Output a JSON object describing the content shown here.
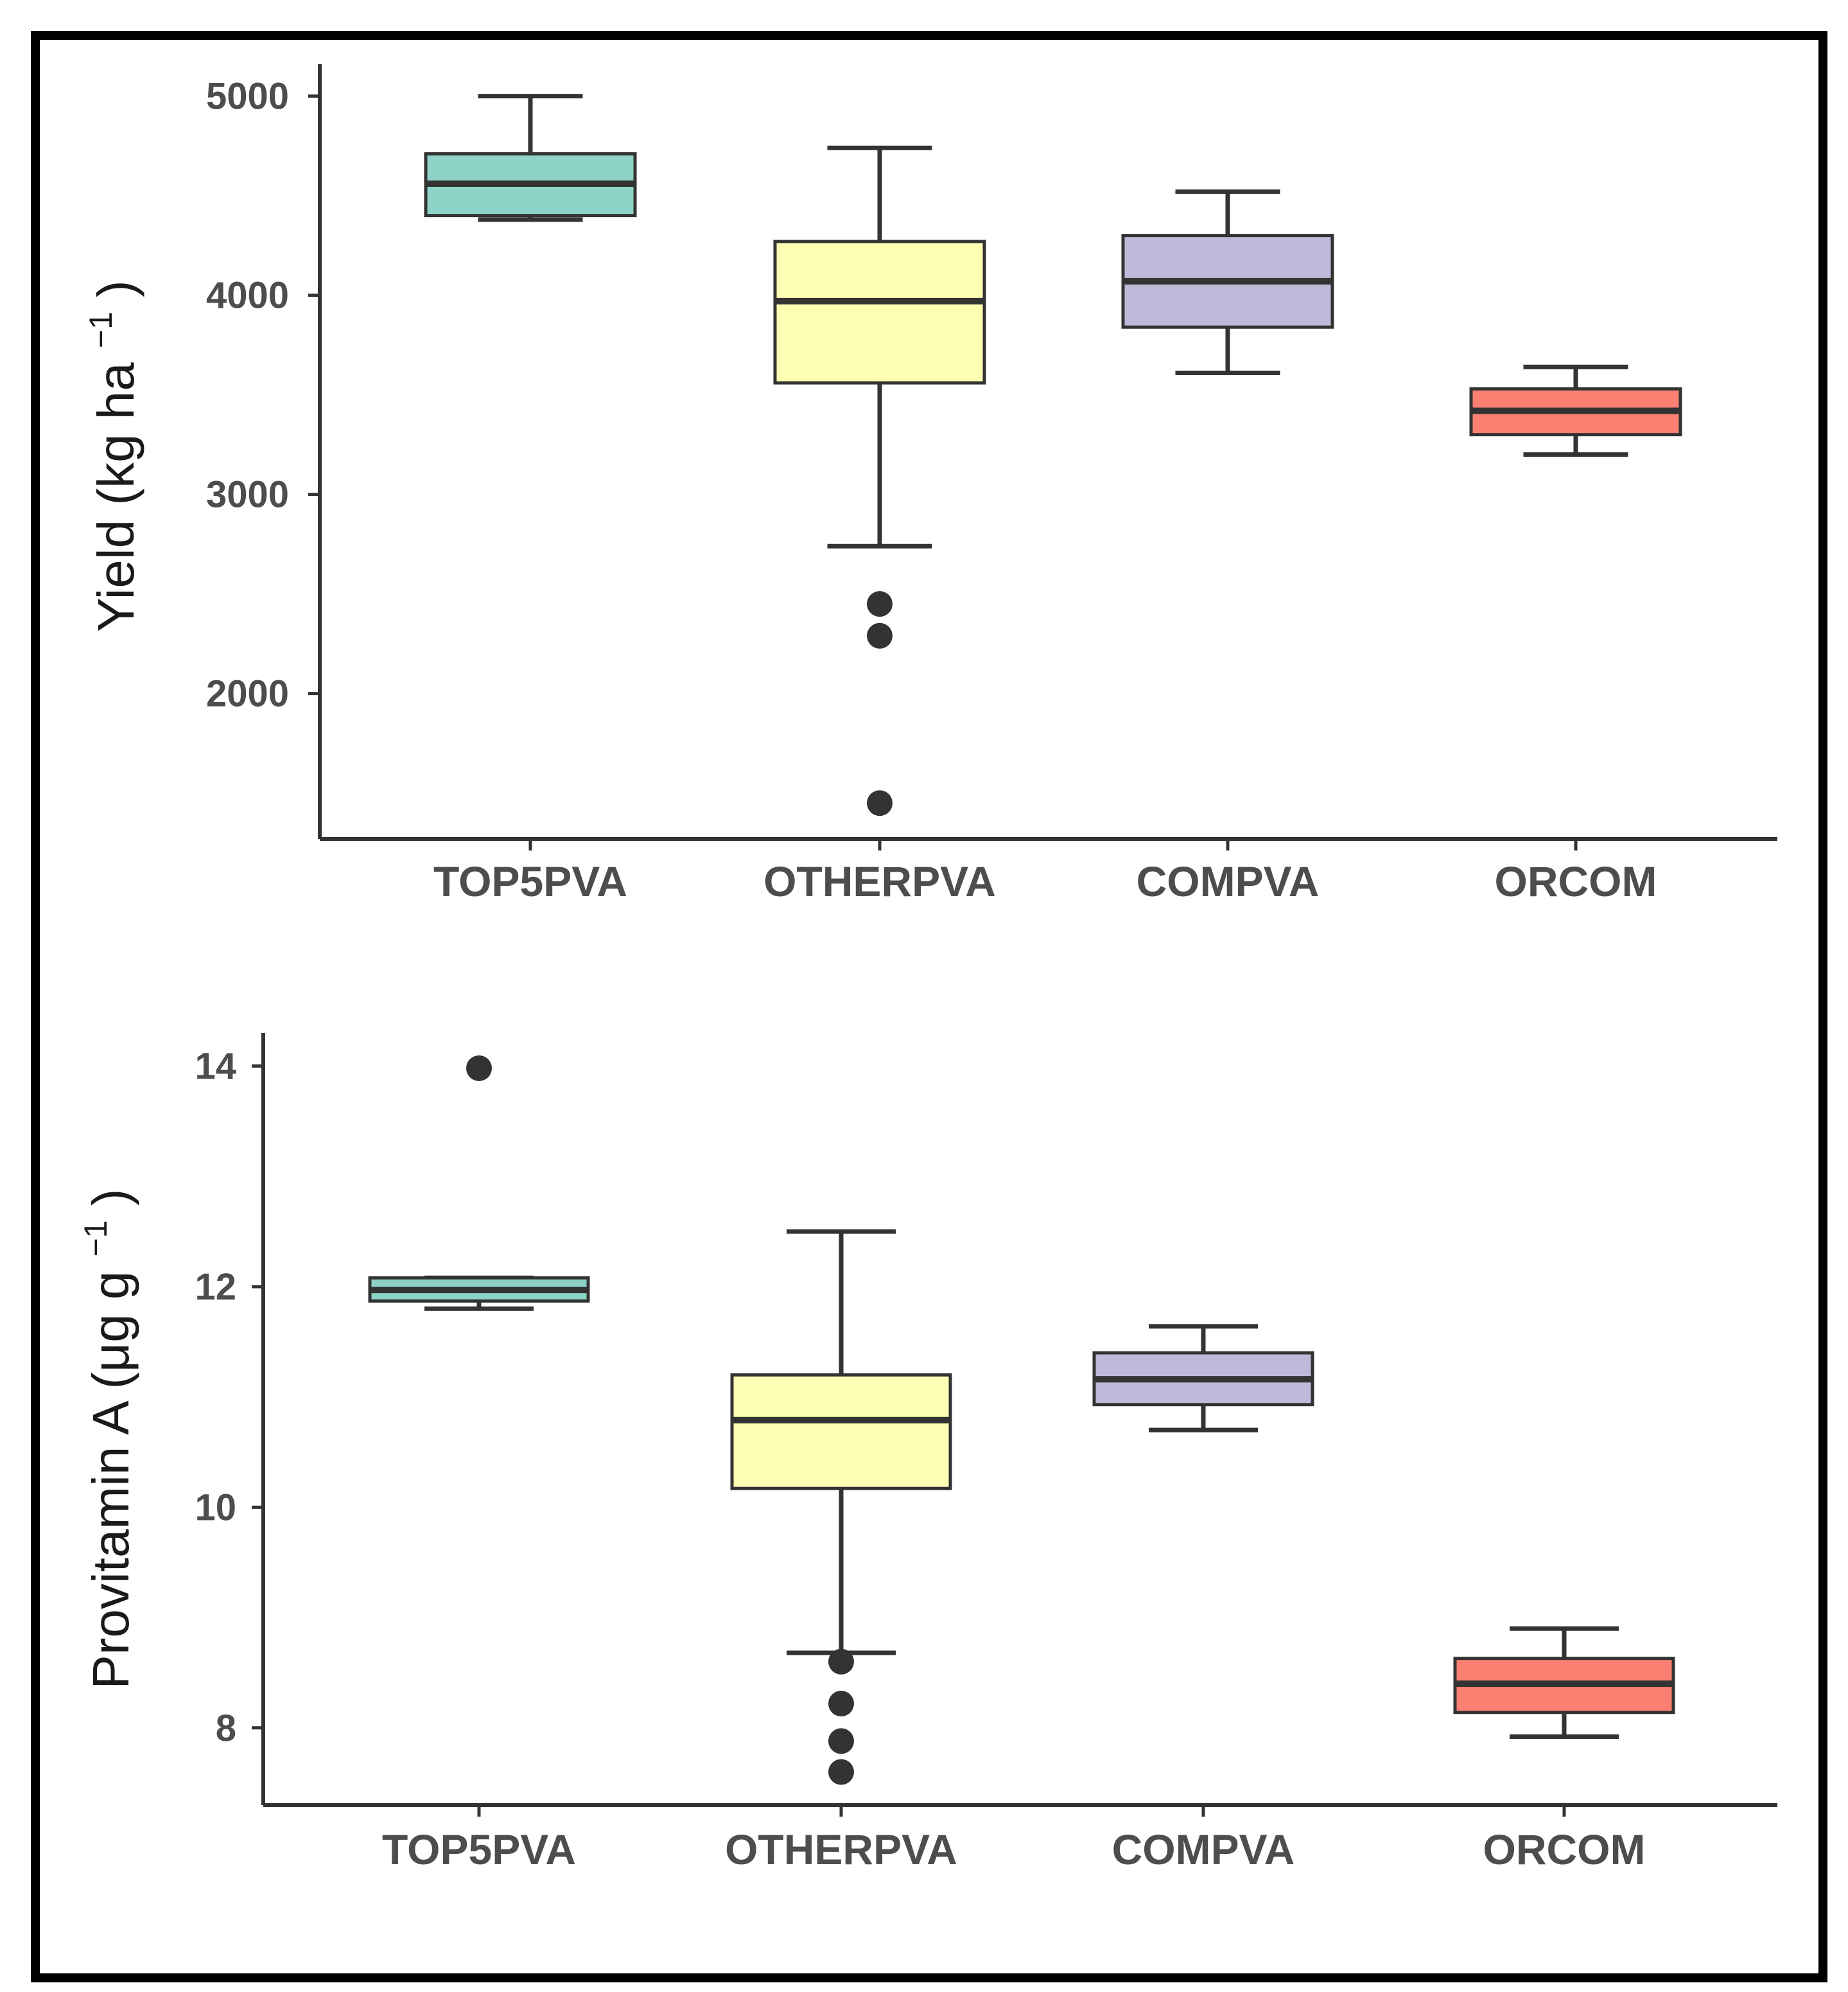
{
  "chart_data": [
    {
      "type": "boxplot",
      "ylabel": "Yield (kg ha",
      "ylabel_sup": "−1",
      "ylabel_close": ")",
      "ylim": [
        1270,
        5160
      ],
      "yticks": [
        2000,
        3000,
        4000,
        5000
      ],
      "categories": [
        "TOP5PVA",
        "OTHERPVA",
        "COMPVA",
        "ORCOM"
      ],
      "boxes": [
        {
          "name": "TOP5PVA",
          "color": "#8dd3c7",
          "whisker_low": 4380,
          "q1": 4400,
          "median": 4560,
          "q3": 4710,
          "whisker_high": 5000,
          "outliers": []
        },
        {
          "name": "OTHERPVA",
          "color": "#ffffb3",
          "whisker_low": 2740,
          "q1": 3560,
          "median": 3970,
          "q3": 4270,
          "whisker_high": 4740,
          "outliers": [
            2450,
            2290,
            1450
          ]
        },
        {
          "name": "COMPVA",
          "color": "#bebada",
          "whisker_low": 3610,
          "q1": 3840,
          "median": 4070,
          "q3": 4300,
          "whisker_high": 4520,
          "outliers": []
        },
        {
          "name": "ORCOM",
          "color": "#fb8072",
          "whisker_low": 3200,
          "q1": 3300,
          "median": 3420,
          "q3": 3530,
          "whisker_high": 3640,
          "outliers": []
        }
      ]
    },
    {
      "type": "boxplot",
      "ylabel": "Provitamin A (μg g",
      "ylabel_sup": "−1",
      "ylabel_close": ")",
      "ylim": [
        7.3,
        14.3
      ],
      "yticks": [
        8,
        10,
        12,
        14
      ],
      "categories": [
        "TOP5PVA",
        "OTHERPVA",
        "COMPVA",
        "ORCOM"
      ],
      "boxes": [
        {
          "name": "TOP5PVA",
          "color": "#8dd3c7",
          "whisker_low": 11.8,
          "q1": 11.87,
          "median": 11.97,
          "q3": 12.08,
          "whisker_high": 12.08,
          "outliers": [
            13.98
          ]
        },
        {
          "name": "OTHERPVA",
          "color": "#ffffb3",
          "whisker_low": 8.68,
          "q1": 10.17,
          "median": 10.79,
          "q3": 11.2,
          "whisker_high": 12.5,
          "outliers": [
            8.6,
            8.22,
            7.88,
            7.6
          ]
        },
        {
          "name": "COMPVA",
          "color": "#bebada",
          "whisker_low": 10.7,
          "q1": 10.93,
          "median": 11.16,
          "q3": 11.4,
          "whisker_high": 11.64,
          "outliers": []
        },
        {
          "name": "ORCOM",
          "color": "#fb8072",
          "whisker_low": 7.92,
          "q1": 8.14,
          "median": 8.4,
          "q3": 8.63,
          "whisker_high": 8.9,
          "outliers": []
        }
      ]
    }
  ]
}
